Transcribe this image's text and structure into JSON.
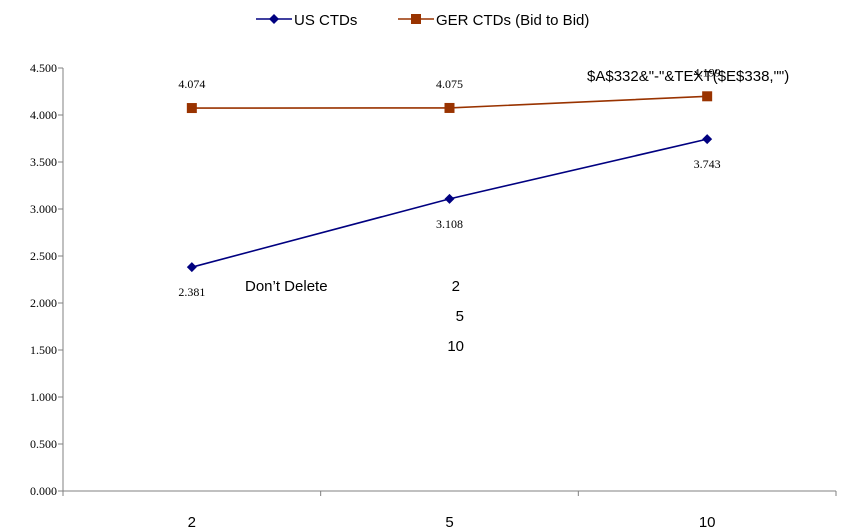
{
  "chart_data": {
    "type": "line",
    "title": "",
    "xlabel": "",
    "ylabel": "",
    "categories": [
      "2",
      "5",
      "10"
    ],
    "ylim": [
      0,
      4.5
    ],
    "yticks": [
      "0.000",
      "0.500",
      "1.000",
      "1.500",
      "2.000",
      "2.500",
      "3.000",
      "3.500",
      "4.000",
      "4.500"
    ],
    "grid": false,
    "legend_position": "top-center",
    "series": [
      {
        "name": "US CTDs",
        "values": [
          2.381,
          3.108,
          3.743
        ],
        "labels": [
          "2.381",
          "3.108",
          "3.743"
        ],
        "color": "#000080",
        "marker": "diamond"
      },
      {
        "name": "GER CTDs (Bid to Bid)",
        "values": [
          4.074,
          4.075,
          4.199
        ],
        "labels": [
          "4.074",
          "4.075",
          "4.199"
        ],
        "color": "#993300",
        "marker": "square"
      }
    ],
    "annotations": {
      "formula": "$A$332&\"-\"&TEXT($E$338,\"\")",
      "dont_delete": "Don’t Delete",
      "list": [
        "2",
        "5",
        "10"
      ]
    }
  }
}
